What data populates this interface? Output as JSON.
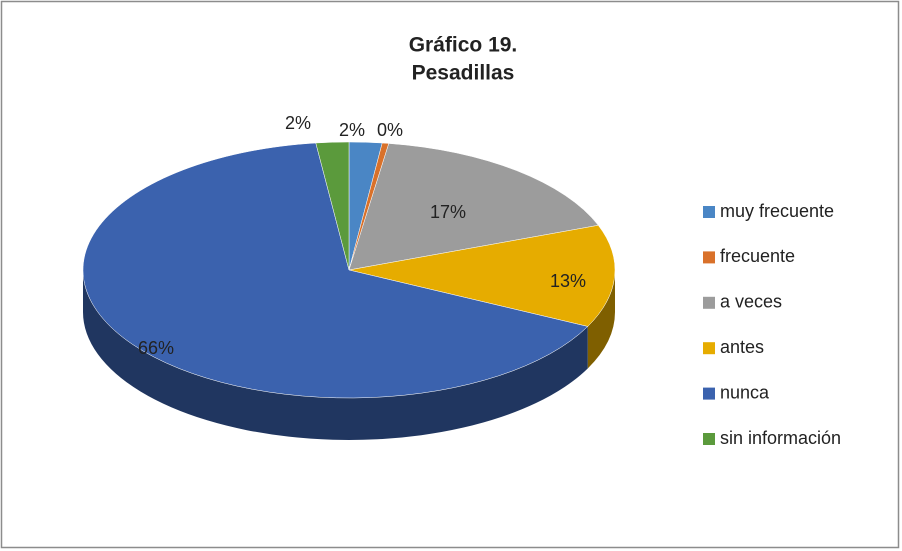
{
  "chart_data": {
    "type": "pie",
    "title": [
      "Gráfico 19.",
      "Pesadillas"
    ],
    "categories": [
      "muy frecuente",
      "frecuente",
      "a veces",
      "antes",
      "nunca",
      "sin información"
    ],
    "values": [
      2,
      0.4,
      17,
      13,
      66,
      2
    ],
    "value_labels": [
      "2%",
      "0%",
      "17%",
      "13%",
      "66%",
      "2%"
    ],
    "colors": [
      "#4a86c5",
      "#d9712a",
      "#9c9c9c",
      "#e6ac00",
      "#3b62ae",
      "#5b9a3c"
    ],
    "legend": "right"
  }
}
